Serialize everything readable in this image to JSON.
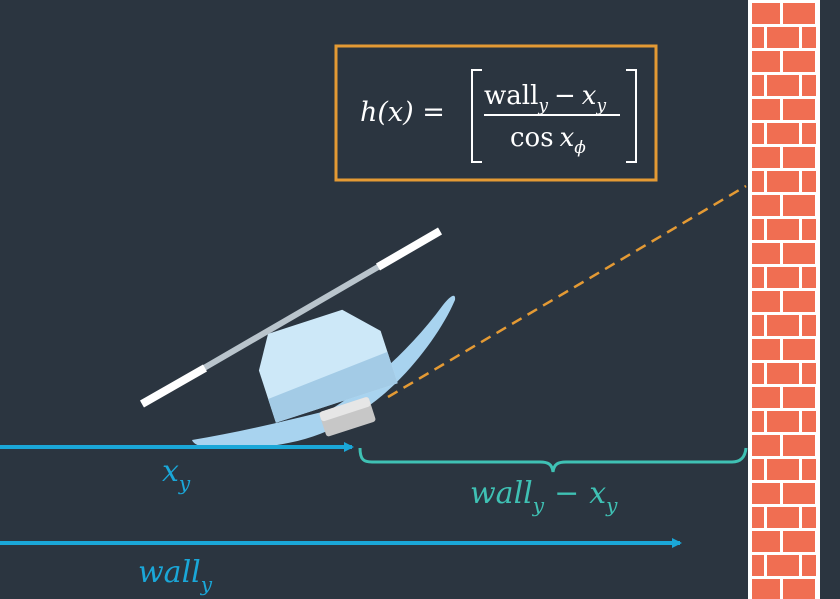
{
  "formula": {
    "lhs": "h(x) =",
    "numerator_wall": "wall",
    "numerator_wall_sub": "y",
    "numerator_minus": "−",
    "numerator_x": "x",
    "numerator_x_sub": "y",
    "denominator_cos": "cos",
    "denominator_x": "x",
    "denominator_x_sub": "ϕ"
  },
  "labels": {
    "xy": "x",
    "xy_sub": "y",
    "gap_wall": "wall",
    "gap_wall_sub": "y",
    "gap_minus": "−",
    "gap_x": "x",
    "gap_x_sub": "y",
    "wall_dist": "wall",
    "wall_dist_sub": "y"
  },
  "colors": {
    "background": "#2b3540",
    "formula_border": "#e49a34",
    "sensor_ray": "#e49a34",
    "xy_arrow": "#1aa7d8",
    "wall_arrow": "#1aa7d8",
    "brace": "#3fc1b4",
    "brick": "#f06e52",
    "mortar": "#ffffff"
  }
}
